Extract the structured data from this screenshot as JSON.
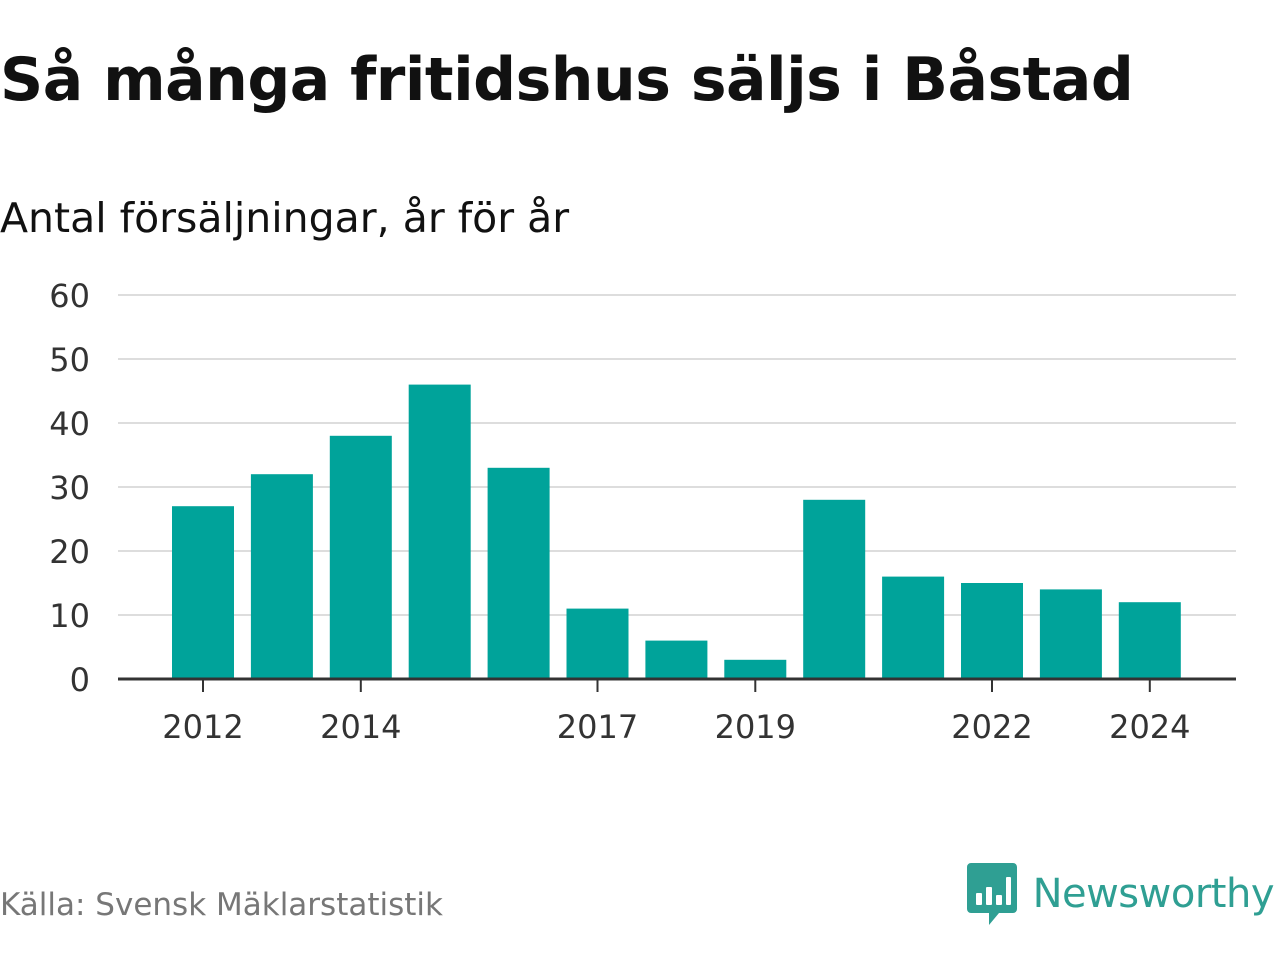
{
  "header": {
    "title": "Så många fritidshus säljs i Båstad",
    "subtitle": "Antal försäljningar, år för år"
  },
  "footer": {
    "source": "Källa: Svensk Mäklarstatistik",
    "brand_name": "Newsworthy",
    "brand_icon": "bar-chart-speech-bubble-icon"
  },
  "colors": {
    "bar": "#00a39a",
    "grid": "#dddddd",
    "axis": "#333333",
    "brand": "#2f9f93"
  },
  "chart_data": {
    "type": "bar",
    "title": "Så många fritidshus säljs i Båstad",
    "subtitle": "Antal försäljningar, år för år",
    "categories": [
      "2012",
      "2013",
      "2014",
      "2015",
      "2016",
      "2017",
      "2018",
      "2019",
      "2020",
      "2021",
      "2022",
      "2023",
      "2024"
    ],
    "values": [
      27,
      32,
      38,
      46,
      33,
      11,
      6,
      3,
      28,
      16,
      15,
      14,
      12
    ],
    "x_tick_labels": [
      "2012",
      "2014",
      "2017",
      "2019",
      "2022",
      "2024"
    ],
    "y_ticks": [
      0,
      10,
      20,
      30,
      40,
      50,
      60
    ],
    "ylim": [
      0,
      60
    ],
    "xlabel": "",
    "ylabel": "",
    "grid": true,
    "legend": false
  }
}
